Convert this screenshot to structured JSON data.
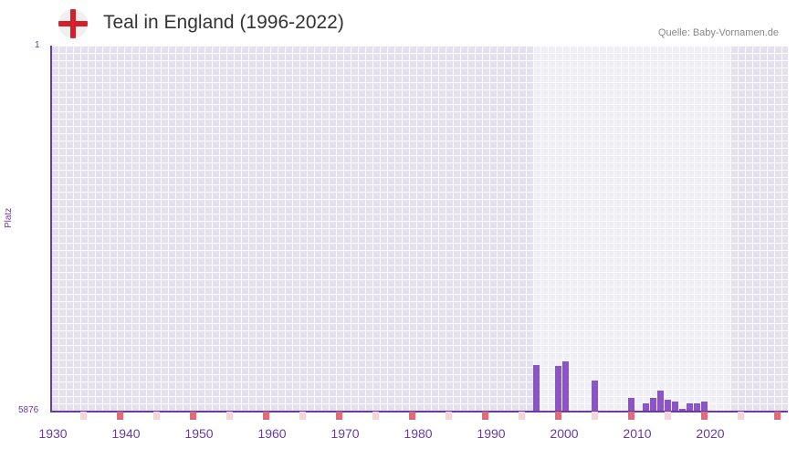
{
  "header": {
    "title": "Teal in England (1996-2022)",
    "source": "Quelle: Baby-Vornamen.de",
    "flag_icon": "england-flag-icon"
  },
  "colors": {
    "bar": "#8b55c4",
    "axis": "#6a3aa0",
    "decade_marker": "#e06b7a",
    "half_marker": "#f5d5dc"
  },
  "chart_data": {
    "type": "bar",
    "title": "Teal in England (1996-2022)",
    "xlabel": "",
    "ylabel": "Platz",
    "ylim": [
      5876,
      1
    ],
    "y_ticks": [
      "1",
      "5876"
    ],
    "x_ticks": [
      "1930",
      "1940",
      "1950",
      "1960",
      "1970",
      "1980",
      "1990",
      "2000",
      "2010",
      "2020"
    ],
    "x_range": [
      1930,
      2030
    ],
    "highlight_range": [
      1996,
      2022
    ],
    "categories": [
      1996,
      1999,
      2000,
      2004,
      2009,
      2011,
      2012,
      2013,
      2014,
      2015,
      2016,
      2017,
      2018,
      2019
    ],
    "values": [
      5140,
      5155,
      5085,
      5390,
      5670,
      5760,
      5670,
      5550,
      5700,
      5730,
      5850,
      5760,
      5760,
      5730
    ],
    "grid": true,
    "legend": null
  },
  "axis": {
    "y_top": "1",
    "y_bottom": "5876",
    "y_title": "Platz"
  }
}
